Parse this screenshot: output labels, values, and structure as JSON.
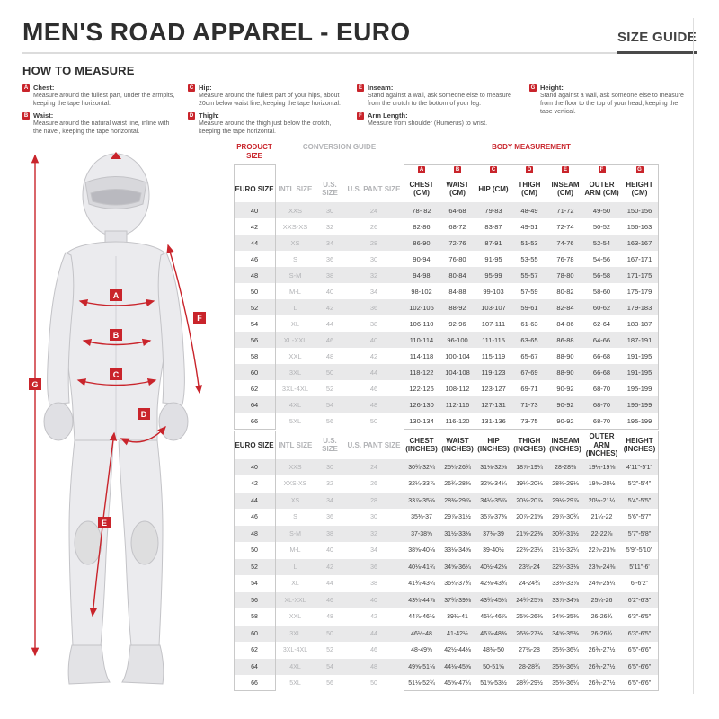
{
  "page": {
    "title": "MEN'S ROAD APPAREL - EURO",
    "size_guide_label": "SIZE GUIDE",
    "how_to_measure_title": "HOW TO MEASURE"
  },
  "measure_guide": [
    {
      "letter": "A",
      "term": "Chest:",
      "desc": "Measure around the fullest part, under the armpits, keeping the tape horizontal."
    },
    {
      "letter": "B",
      "term": "Waist:",
      "desc": "Measure around the natural waist line, inline with the navel, keeping the tape horizontal."
    },
    {
      "letter": "C",
      "term": "Hip:",
      "desc": "Measure around the fullest part of your hips, about 20cm below waist line, keeping the tape horizontal."
    },
    {
      "letter": "D",
      "term": "Thigh:",
      "desc": "Measure around the thigh just below the crotch, keeping the tape horizontal."
    },
    {
      "letter": "E",
      "term": "Inseam:",
      "desc": "Stand against a wall, ask someone else to measure from the crotch to the bottom of your leg."
    },
    {
      "letter": "F",
      "term": "Arm Length:",
      "desc": "Measure from shoulder (Humerus) to wrist."
    },
    {
      "letter": "G",
      "term": "Height:",
      "desc": "Stand against a wall, ask someone else to measure from the floor to the top of your head, keeping the tape vertical."
    }
  ],
  "figure": {
    "labels": [
      "A",
      "B",
      "C",
      "D",
      "E",
      "F",
      "G"
    ]
  },
  "colors": {
    "accent_red": "#c9242b",
    "row_stripe": "#e9e9ea",
    "muted_gray": "#b2b3b6"
  },
  "tables": {
    "cm": {
      "section_titles": {
        "product_size": "PRODUCT SIZE",
        "conversion_guide": "CONVERSION GUIDE",
        "body_measurement": "BODY MEASUREMENT"
      },
      "badges": [
        "A",
        "B",
        "C",
        "D",
        "E",
        "F",
        "G"
      ],
      "columns": [
        "EURO SIZE",
        "INTL SIZE",
        "U.S. SIZE",
        "U.S. PANT SIZE",
        "CHEST (CM)",
        "WAIST (CM)",
        "HIP (CM)",
        "THIGH (CM)",
        "INSEAM (CM)",
        "OUTER ARM (CM)",
        "HEIGHT (CM)"
      ],
      "rows": [
        [
          "40",
          "XXS",
          "30",
          "24",
          "78- 82",
          "64-68",
          "79-83",
          "48-49",
          "71-72",
          "49-50",
          "150-156"
        ],
        [
          "42",
          "XXS-XS",
          "32",
          "26",
          "82-86",
          "68-72",
          "83-87",
          "49-51",
          "72-74",
          "50-52",
          "156-163"
        ],
        [
          "44",
          "XS",
          "34",
          "28",
          "86-90",
          "72-76",
          "87-91",
          "51-53",
          "74-76",
          "52-54",
          "163-167"
        ],
        [
          "46",
          "S",
          "36",
          "30",
          "90-94",
          "76-80",
          "91-95",
          "53-55",
          "76-78",
          "54-56",
          "167-171"
        ],
        [
          "48",
          "S-M",
          "38",
          "32",
          "94-98",
          "80-84",
          "95-99",
          "55-57",
          "78-80",
          "56-58",
          "171-175"
        ],
        [
          "50",
          "M-L",
          "40",
          "34",
          "98-102",
          "84-88",
          "99-103",
          "57-59",
          "80-82",
          "58-60",
          "175-179"
        ],
        [
          "52",
          "L",
          "42",
          "36",
          "102-106",
          "88-92",
          "103-107",
          "59-61",
          "82-84",
          "60-62",
          "179-183"
        ],
        [
          "54",
          "XL",
          "44",
          "38",
          "106-110",
          "92-96",
          "107-111",
          "61-63",
          "84-86",
          "62-64",
          "183-187"
        ],
        [
          "56",
          "XL-XXL",
          "46",
          "40",
          "110-114",
          "96-100",
          "111-115",
          "63-65",
          "86-88",
          "64-66",
          "187-191"
        ],
        [
          "58",
          "XXL",
          "48",
          "42",
          "114-118",
          "100-104",
          "115-119",
          "65-67",
          "88-90",
          "66-68",
          "191-195"
        ],
        [
          "60",
          "3XL",
          "50",
          "44",
          "118-122",
          "104-108",
          "119-123",
          "67-69",
          "88-90",
          "66-68",
          "191-195"
        ],
        [
          "62",
          "3XL-4XL",
          "52",
          "46",
          "122-126",
          "108-112",
          "123-127",
          "69-71",
          "90-92",
          "68-70",
          "195-199"
        ],
        [
          "64",
          "4XL",
          "54",
          "48",
          "126-130",
          "112-116",
          "127-131",
          "71-73",
          "90-92",
          "68-70",
          "195-199"
        ],
        [
          "66",
          "5XL",
          "56",
          "50",
          "130-134",
          "116-120",
          "131-136",
          "73-75",
          "90-92",
          "68-70",
          "195-199"
        ]
      ]
    },
    "inches": {
      "columns": [
        "EURO SIZE",
        "INTL SIZE",
        "U.S. SIZE",
        "U.S. PANT SIZE",
        "CHEST (INCHES)",
        "WAIST (INCHES)",
        "HIP (INCHES)",
        "THIGH (INCHES)",
        "INSEAM (INCHES)",
        "OUTER ARM (INCHES)",
        "HEIGHT (INCHES)"
      ],
      "rows": [
        [
          "40",
          "XXS",
          "30",
          "24",
          "30¾-32¼",
          "25¼-26¾",
          "31⅛-32⅝",
          "18⅞-19¼",
          "28-28⅜",
          "19¼-19⅝",
          "4'11\"-5'1\""
        ],
        [
          "42",
          "XXS-XS",
          "32",
          "26",
          "32¼-33⅞",
          "26¾-28⅜",
          "32⅝-34¼",
          "19¼-20⅛",
          "28⅜-29⅛",
          "19⅝-20½",
          "5'2\"-5'4\""
        ],
        [
          "44",
          "XS",
          "34",
          "28",
          "33⅞-35⅜",
          "28⅜-29⅞",
          "34¼-35⅞",
          "20⅛-20⅞",
          "29⅛-29⅞",
          "20½-21¼",
          "5'4\"-5'5\""
        ],
        [
          "46",
          "S",
          "36",
          "30",
          "35⅜-37",
          "29⅞-31½",
          "35⅞-37⅜",
          "20⅞-21⅝",
          "29⅞-30¾",
          "21¼-22",
          "5'6\"-5'7\""
        ],
        [
          "48",
          "S-M",
          "38",
          "32",
          "37-38⅝",
          "31½-33⅛",
          "37⅜-39",
          "21⅝-22⅜",
          "30¾-31½",
          "22-22⅞",
          "5'7\"-5'8\""
        ],
        [
          "50",
          "M-L",
          "40",
          "34",
          "38⅝-40⅛",
          "33⅛-34⅝",
          "39-40½",
          "22⅜-23¼",
          "31½-32¼",
          "22⅞-23⅝",
          "5'9\"-5'10\""
        ],
        [
          "52",
          "L",
          "42",
          "36",
          "40⅛-41¾",
          "34⅝-36¼",
          "40½-42⅛",
          "23¼-24",
          "32¼-33⅛",
          "23⅝-24⅜",
          "5'11\"-6'"
        ],
        [
          "54",
          "XL",
          "44",
          "38",
          "41¾-43¼",
          "36¼-37¾",
          "42⅛-43¾",
          "24-24¾",
          "33⅛-33⅞",
          "24⅜-25¼",
          "6'-6'2\""
        ],
        [
          "56",
          "XL-XXL",
          "46",
          "40",
          "43¼-44⅞",
          "37¾-39⅜",
          "43¾-45¼",
          "24¾-25⅝",
          "33⅞-34⅝",
          "25¼-26",
          "6'2\"-6'3\""
        ],
        [
          "58",
          "XXL",
          "48",
          "42",
          "44⅞-46½",
          "39⅜-41",
          "45¼-46⅞",
          "25⅝-26⅜",
          "34⅝-35⅜",
          "26-26¾",
          "6'3\"-6'5\""
        ],
        [
          "60",
          "3XL",
          "50",
          "44",
          "46½-48",
          "41-42½",
          "46⅞-48⅜",
          "26⅜-27⅛",
          "34⅝-35⅜",
          "26-26¾",
          "6'3\"-6'5\""
        ],
        [
          "62",
          "3XL-4XL",
          "52",
          "46",
          "48-49⅝",
          "42½-44⅛",
          "48⅜-50",
          "27⅛-28",
          "35⅜-36¼",
          "26¾-27½",
          "6'5\"-6'6\""
        ],
        [
          "64",
          "4XL",
          "54",
          "48",
          "49⅝-51⅛",
          "44⅛-45⅝",
          "50-51⅝",
          "28-28¾",
          "35⅜-36¼",
          "26¾-27½",
          "6'5\"-6'6\""
        ],
        [
          "66",
          "5XL",
          "56",
          "50",
          "51⅛-52¾",
          "45⅝-47¼",
          "51⅝-53½",
          "28¾-29½",
          "35⅜-36¼",
          "26¾-27½",
          "6'5\"-6'6\""
        ]
      ]
    }
  }
}
